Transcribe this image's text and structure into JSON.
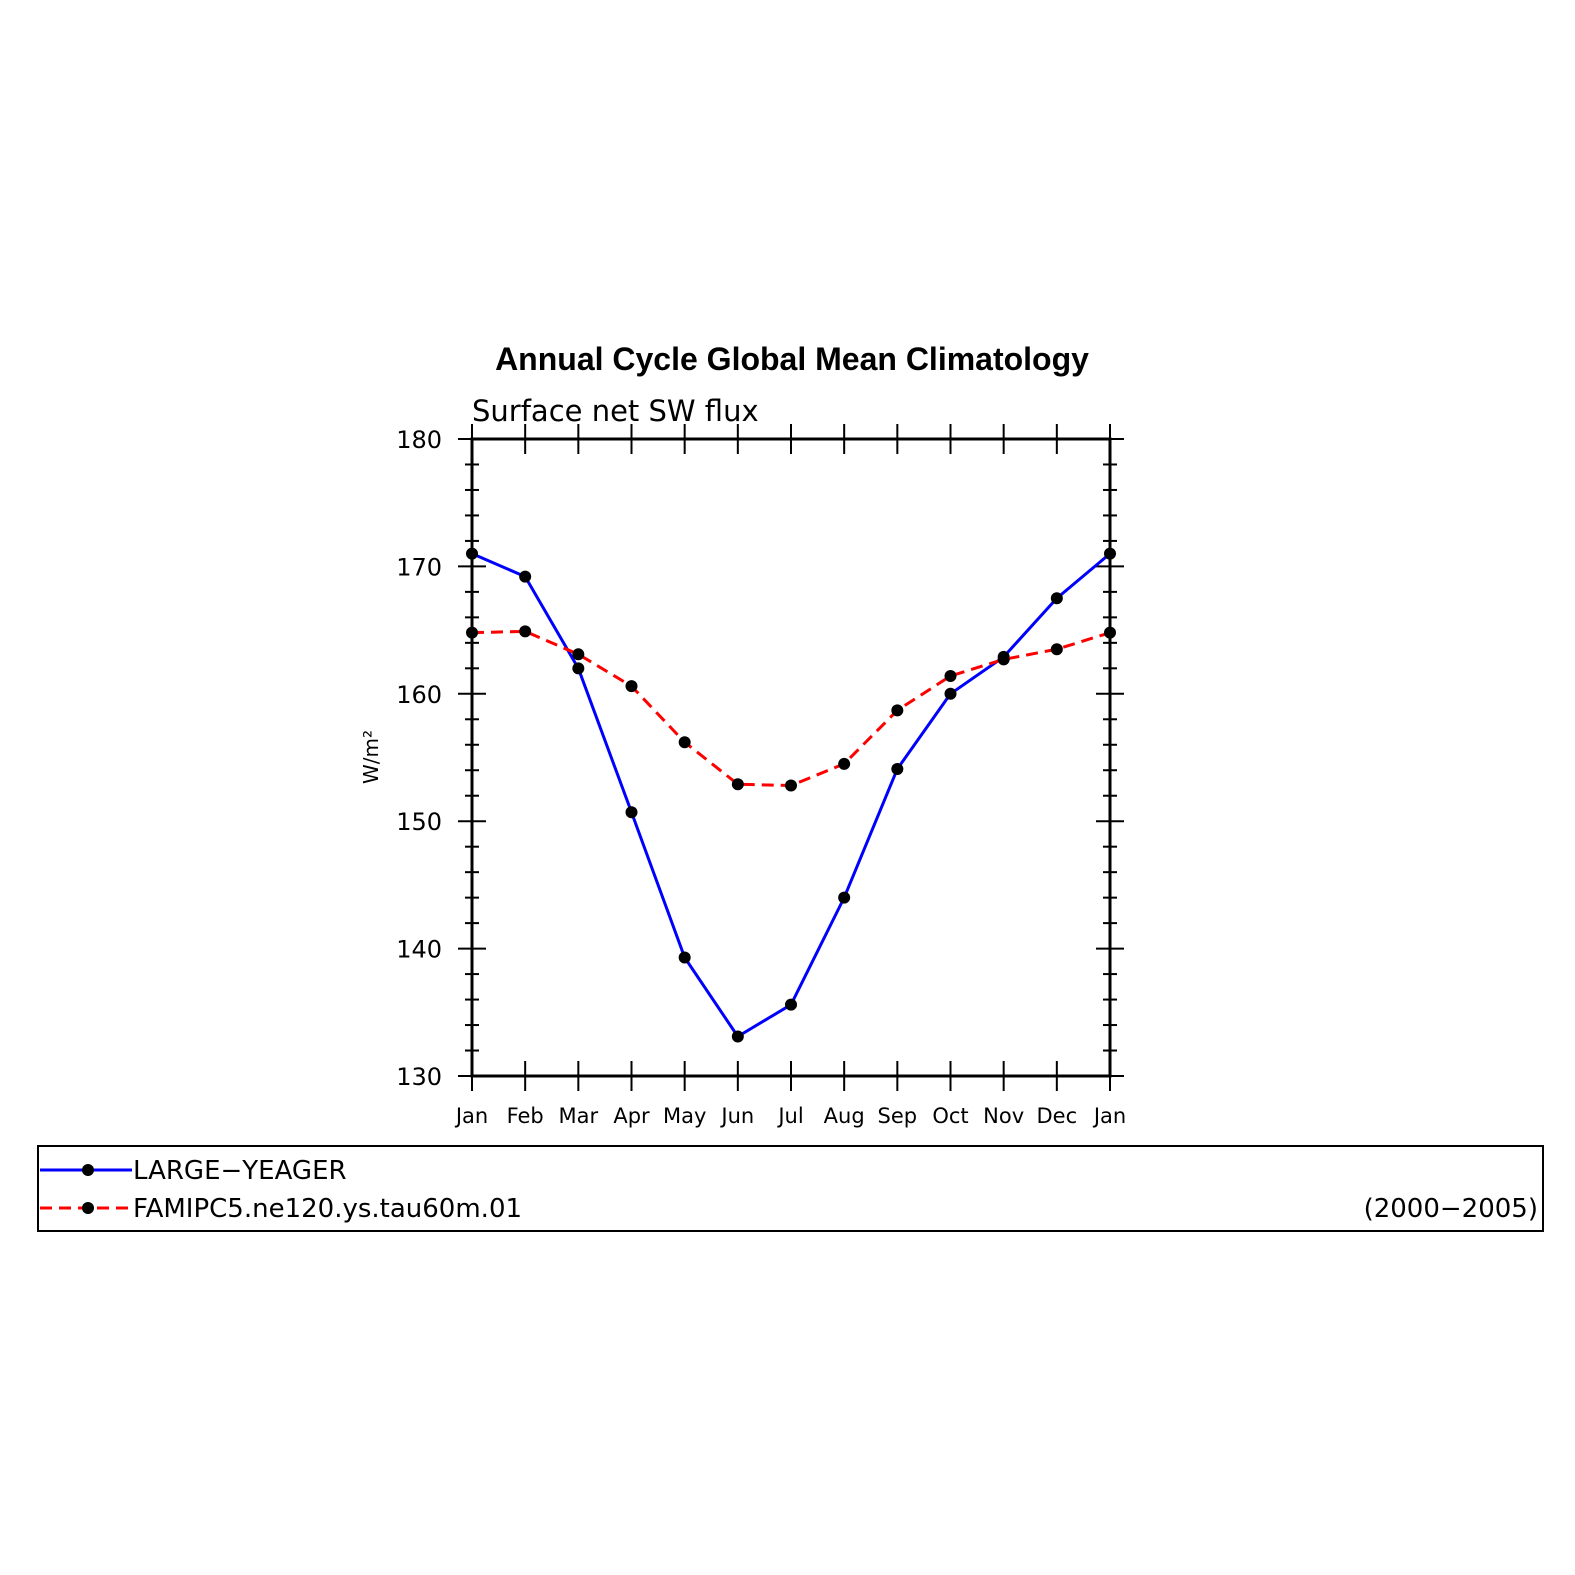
{
  "chart_data": {
    "type": "line",
    "title": "Annual Cycle Global Mean Climatology",
    "subtitle": "Surface net SW flux",
    "xlabel": "",
    "ylabel": "W/m²",
    "ylim": [
      130,
      180
    ],
    "y_ticks": [
      "130",
      "140",
      "150",
      "160",
      "170",
      "180"
    ],
    "categories": [
      "Jan",
      "Feb",
      "Mar",
      "Apr",
      "May",
      "Jun",
      "Jul",
      "Aug",
      "Sep",
      "Oct",
      "Nov",
      "Dec",
      "Jan"
    ],
    "grid": false,
    "legend_position": "bottom",
    "series": [
      {
        "name": "LARGE−YEAGER",
        "color": "#0000ff",
        "line_style": "solid",
        "marker": "filled-circle",
        "values": [
          171.0,
          169.2,
          162.0,
          150.7,
          139.3,
          133.1,
          135.6,
          144.0,
          154.1,
          160.0,
          162.9,
          167.5,
          171.0
        ]
      },
      {
        "name": "FAMIPC5.ne120.ys.tau60m.01",
        "color": "#ff0000",
        "line_style": "dashed",
        "marker": "filled-circle",
        "values": [
          164.8,
          164.9,
          163.1,
          160.6,
          156.2,
          152.9,
          152.8,
          154.5,
          158.7,
          161.4,
          162.7,
          163.5,
          164.8
        ]
      }
    ],
    "legend_note": "(2000−2005)"
  }
}
